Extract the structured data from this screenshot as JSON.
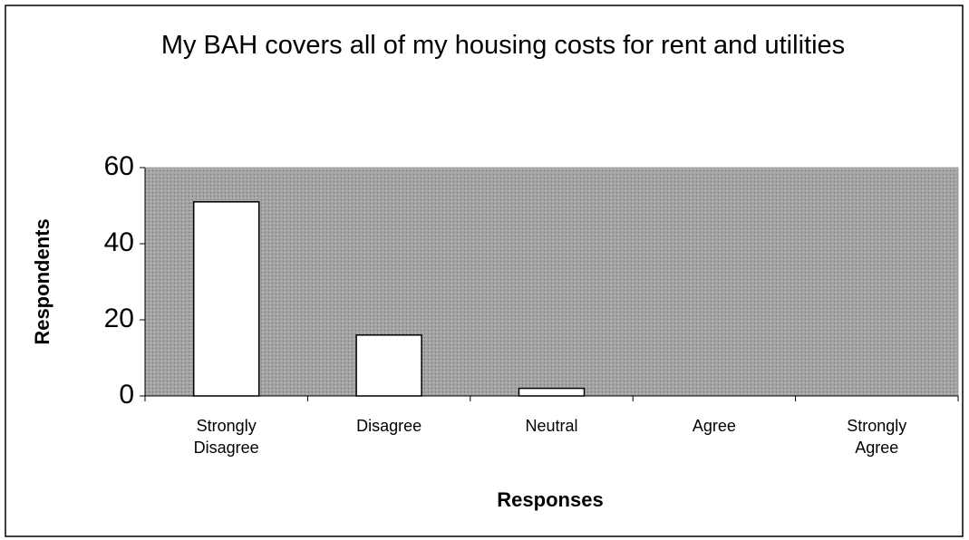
{
  "chart_data": {
    "type": "bar",
    "title": "My BAH covers all of my housing costs for rent and utilities",
    "x_label": "Responses",
    "y_label": "Respondents",
    "categories": [
      "Strongly Disagree",
      "Disagree",
      "Neutral",
      "Agree",
      "Strongly Agree"
    ],
    "values": [
      51,
      16,
      2,
      0,
      0
    ],
    "color": "#ffffff",
    "plot_background": "#a3a3a3",
    "ylim": [
      0,
      60
    ],
    "yticks": [
      0,
      20,
      40,
      60
    ],
    "grid": false
  }
}
